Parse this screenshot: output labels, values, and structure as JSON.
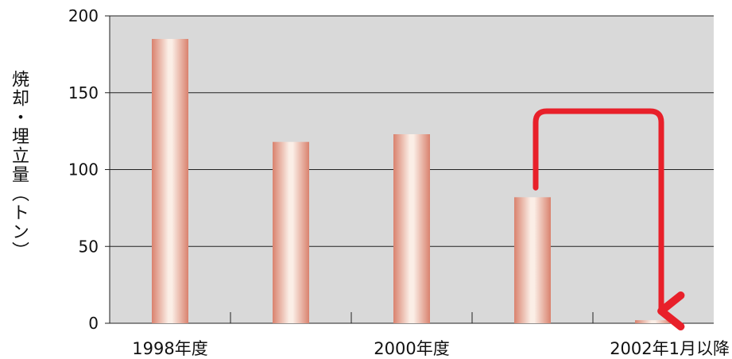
{
  "chart_data": {
    "type": "bar",
    "ylabel": "焼却・埋立量（トン）",
    "ylim": [
      0,
      200
    ],
    "yticks": [
      0,
      50,
      100,
      150,
      200
    ],
    "categories": [
      "1998年度",
      "",
      "2000年度",
      "",
      "2002年1月以降"
    ],
    "values": [
      185,
      118,
      123,
      82,
      2
    ],
    "grid": true,
    "annotation": "red arrow from the fourth bar to 2002年1月以降",
    "colors": {
      "plot_bg": "#d9d9d9",
      "bar_edge": "#d9826e",
      "bar_center": "#fbeee6",
      "arrow": "#e8202a"
    }
  }
}
